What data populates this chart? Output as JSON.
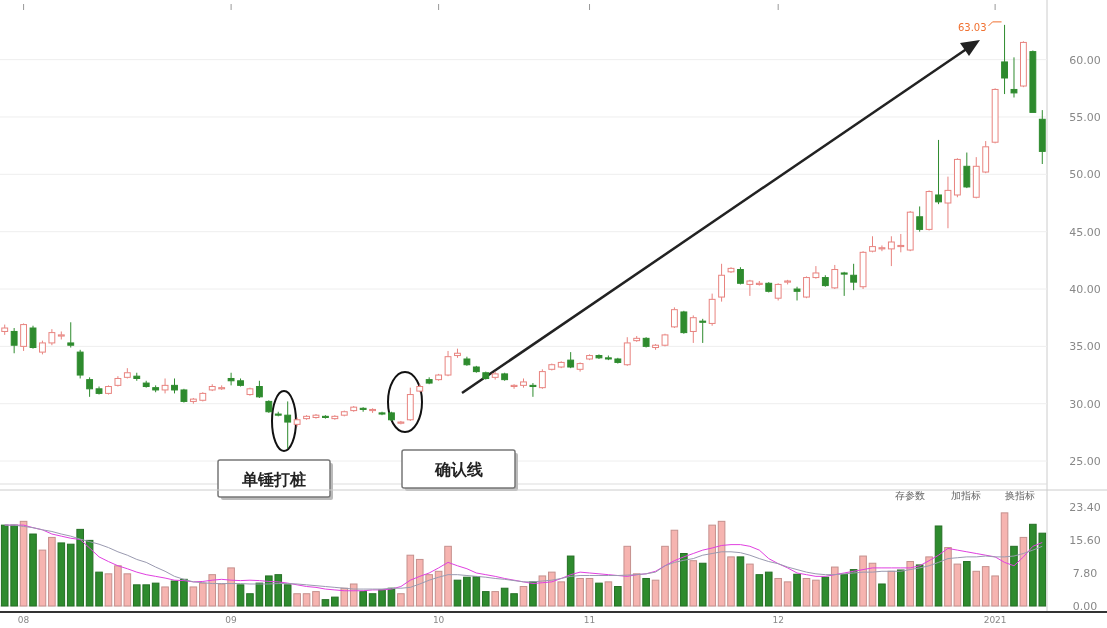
{
  "chart_data": [
    {
      "type": "candlestick",
      "tick_labels": "y",
      "grid": "y",
      "categories": [
        null,
        null,
        "08",
        null,
        null,
        null,
        null,
        null,
        null,
        null,
        null,
        null,
        null,
        null,
        null,
        null,
        null,
        null,
        null,
        null,
        null,
        null,
        null,
        null,
        "09",
        null,
        null,
        null,
        null,
        null,
        null,
        null,
        null,
        null,
        null,
        null,
        null,
        null,
        null,
        null,
        null,
        null,
        null,
        null,
        null,
        null,
        "10",
        null,
        null,
        null,
        null,
        null,
        null,
        null,
        null,
        null,
        null,
        null,
        null,
        null,
        null,
        null,
        "11",
        null,
        null,
        null,
        null,
        null,
        null,
        null,
        null,
        null,
        null,
        null,
        null,
        null,
        null,
        null,
        null,
        null,
        null,
        null,
        "12",
        null,
        null,
        null,
        null,
        null,
        null,
        null,
        null,
        null,
        null,
        null,
        null,
        null,
        null,
        null,
        null,
        null,
        null,
        null,
        null,
        null,
        null,
        "2021",
        null,
        null,
        null,
        null,
        null
      ],
      "ylim": [
        23,
        65.2
      ],
      "yticks": [
        {
          "value": 25,
          "label": "25.00"
        },
        {
          "value": 30,
          "label": "30.00"
        },
        {
          "value": 35,
          "label": "35.00"
        },
        {
          "value": 40,
          "label": "40.00"
        },
        {
          "value": 45,
          "label": "45.00"
        },
        {
          "value": 50,
          "label": "50.00"
        },
        {
          "value": 55,
          "label": "55.00"
        },
        {
          "value": 60,
          "label": "60.00"
        }
      ],
      "ohlc": [
        [
          36.3,
          36.9,
          36.0,
          36.6
        ],
        [
          36.3,
          36.6,
          34.4,
          35.1
        ],
        [
          35.0,
          37.0,
          34.6,
          36.9
        ],
        [
          36.6,
          36.8,
          34.8,
          34.9
        ],
        [
          34.5,
          35.5,
          34.3,
          35.3
        ],
        [
          35.3,
          36.5,
          35.1,
          36.2
        ],
        [
          35.9,
          36.3,
          35.6,
          36.0
        ],
        [
          35.3,
          37.1,
          34.9,
          35.1
        ],
        [
          34.5,
          34.7,
          32.2,
          32.5
        ],
        [
          32.1,
          32.3,
          30.6,
          31.3
        ],
        [
          31.3,
          31.5,
          30.8,
          30.9
        ],
        [
          30.9,
          31.6,
          30.8,
          31.5
        ],
        [
          31.6,
          32.4,
          31.5,
          32.2
        ],
        [
          32.3,
          33.1,
          32.2,
          32.7
        ],
        [
          32.4,
          32.7,
          32.0,
          32.2
        ],
        [
          31.8,
          32.0,
          31.4,
          31.5
        ],
        [
          31.4,
          31.6,
          31.0,
          31.2
        ],
        [
          31.2,
          32.2,
          30.9,
          31.6
        ],
        [
          31.6,
          32.2,
          30.9,
          31.2
        ],
        [
          31.2,
          31.3,
          30.1,
          30.2
        ],
        [
          30.2,
          30.5,
          30.0,
          30.4
        ],
        [
          30.3,
          31.0,
          30.2,
          30.9
        ],
        [
          31.2,
          31.7,
          31.1,
          31.5
        ],
        [
          31.3,
          31.6,
          31.2,
          31.4
        ],
        [
          32.2,
          32.7,
          31.6,
          32.0
        ],
        [
          32.0,
          32.2,
          31.5,
          31.6
        ],
        [
          30.8,
          31.4,
          30.7,
          31.3
        ],
        [
          31.5,
          32.0,
          30.5,
          30.6
        ],
        [
          30.2,
          30.3,
          29.2,
          29.3
        ],
        [
          29.1,
          29.3,
          28.9,
          29.0
        ],
        [
          29.0,
          30.2,
          26.1,
          28.4
        ],
        [
          28.2,
          28.8,
          28.0,
          28.6
        ],
        [
          28.7,
          29.0,
          28.6,
          28.9
        ],
        [
          28.8,
          29.1,
          28.7,
          29.0
        ],
        [
          28.9,
          29.0,
          28.7,
          28.8
        ],
        [
          28.7,
          29.0,
          28.6,
          28.9
        ],
        [
          29.0,
          29.4,
          28.9,
          29.3
        ],
        [
          29.4,
          29.8,
          29.3,
          29.7
        ],
        [
          29.6,
          29.7,
          29.3,
          29.5
        ],
        [
          29.4,
          29.6,
          29.2,
          29.5
        ],
        [
          29.2,
          29.3,
          29.0,
          29.1
        ],
        [
          29.2,
          29.3,
          28.5,
          28.6
        ],
        [
          28.3,
          28.5,
          28.2,
          28.4
        ],
        [
          28.6,
          31.4,
          28.5,
          30.8
        ],
        [
          31.1,
          31.7,
          31.0,
          31.5
        ],
        [
          32.1,
          32.3,
          31.7,
          31.8
        ],
        [
          32.1,
          32.6,
          32.0,
          32.5
        ],
        [
          32.5,
          34.6,
          32.4,
          34.1
        ],
        [
          34.2,
          34.8,
          34.0,
          34.4
        ],
        [
          33.9,
          34.1,
          33.3,
          33.4
        ],
        [
          33.2,
          33.3,
          32.7,
          32.8
        ],
        [
          32.7,
          32.8,
          32.1,
          32.2
        ],
        [
          32.3,
          32.8,
          32.1,
          32.6
        ],
        [
          32.6,
          32.7,
          32.0,
          32.1
        ],
        [
          31.5,
          31.7,
          31.3,
          31.6
        ],
        [
          31.6,
          32.2,
          31.4,
          31.9
        ],
        [
          31.6,
          31.8,
          30.6,
          31.5
        ],
        [
          31.4,
          33.0,
          31.3,
          32.8
        ],
        [
          33.0,
          33.5,
          32.9,
          33.4
        ],
        [
          33.2,
          33.7,
          33.1,
          33.6
        ],
        [
          33.8,
          34.5,
          33.1,
          33.2
        ],
        [
          33.0,
          33.6,
          32.8,
          33.5
        ],
        [
          33.9,
          34.3,
          33.8,
          34.2
        ],
        [
          34.2,
          34.3,
          33.9,
          34.0
        ],
        [
          34.0,
          34.2,
          33.8,
          33.9
        ],
        [
          33.9,
          34.0,
          33.5,
          33.6
        ],
        [
          33.4,
          35.8,
          33.3,
          35.3
        ],
        [
          35.5,
          35.9,
          35.4,
          35.7
        ],
        [
          35.7,
          35.8,
          34.9,
          35.0
        ],
        [
          34.9,
          35.2,
          34.7,
          35.1
        ],
        [
          35.1,
          36.1,
          35.0,
          36.0
        ],
        [
          36.7,
          38.4,
          36.6,
          38.2
        ],
        [
          38.0,
          38.1,
          36.1,
          36.2
        ],
        [
          36.3,
          37.7,
          35.3,
          37.5
        ],
        [
          37.2,
          37.4,
          35.3,
          37.1
        ],
        [
          37.0,
          39.6,
          36.8,
          39.1
        ],
        [
          39.3,
          42.2,
          38.9,
          41.2
        ],
        [
          41.5,
          41.9,
          41.4,
          41.8
        ],
        [
          41.7,
          41.9,
          40.4,
          40.5
        ],
        [
          40.4,
          40.8,
          39.4,
          40.7
        ],
        [
          40.4,
          40.7,
          40.3,
          40.5
        ],
        [
          40.5,
          40.6,
          39.7,
          39.8
        ],
        [
          39.2,
          40.5,
          39.0,
          40.4
        ],
        [
          40.6,
          40.8,
          40.4,
          40.7
        ],
        [
          40.0,
          40.2,
          39.0,
          39.8
        ],
        [
          39.3,
          41.1,
          39.2,
          41.0
        ],
        [
          41.0,
          42.0,
          40.9,
          41.4
        ],
        [
          41.0,
          41.2,
          40.2,
          40.3
        ],
        [
          40.1,
          42.1,
          40.0,
          41.7
        ],
        [
          41.4,
          41.5,
          39.4,
          41.3
        ],
        [
          41.2,
          42.2,
          39.9,
          40.6
        ],
        [
          40.2,
          43.3,
          40.0,
          43.2
        ],
        [
          43.3,
          44.6,
          43.2,
          43.7
        ],
        [
          43.5,
          43.8,
          43.3,
          43.6
        ],
        [
          43.5,
          44.6,
          42.0,
          44.1
        ],
        [
          43.7,
          44.8,
          43.2,
          43.8
        ],
        [
          43.4,
          46.8,
          43.3,
          46.7
        ],
        [
          46.3,
          47.2,
          45.0,
          45.2
        ],
        [
          45.2,
          48.6,
          45.1,
          48.5
        ],
        [
          48.2,
          53.0,
          47.4,
          47.6
        ],
        [
          47.5,
          49.8,
          45.3,
          48.6
        ],
        [
          48.2,
          51.4,
          48.0,
          51.3
        ],
        [
          50.7,
          51.9,
          48.8,
          48.9
        ],
        [
          48.0,
          51.5,
          47.9,
          50.7
        ],
        [
          50.2,
          52.9,
          50.1,
          52.4
        ],
        [
          52.8,
          57.5,
          52.7,
          57.4
        ],
        [
          59.8,
          63.03,
          57.0,
          58.4
        ],
        [
          57.4,
          60.2,
          56.7,
          57.1
        ],
        [
          57.7,
          61.6,
          57.6,
          61.5
        ],
        [
          60.7,
          60.8,
          55.4,
          55.4
        ],
        [
          54.8,
          55.6,
          50.9,
          52.0
        ]
      ],
      "annotations": [
        "63.03",
        "单锤打桩",
        "确认线"
      ]
    },
    {
      "type": "bar",
      "categories": [
        null,
        null,
        "08",
        null,
        null,
        null,
        null,
        null,
        null,
        null,
        null,
        null,
        null,
        null,
        null,
        null,
        null,
        null,
        null,
        null,
        null,
        null,
        null,
        null,
        "09",
        null,
        null,
        null,
        null,
        null,
        null,
        null,
        null,
        null,
        null,
        null,
        null,
        null,
        null,
        null,
        null,
        null,
        null,
        null,
        null,
        null,
        "10",
        null,
        null,
        null,
        null,
        null,
        null,
        null,
        null,
        null,
        null,
        null,
        null,
        null,
        null,
        null,
        "11",
        null,
        null,
        null,
        null,
        null,
        null,
        null,
        null,
        null,
        null,
        null,
        null,
        null,
        null,
        null,
        null,
        null,
        null,
        null,
        "12",
        null,
        null,
        null,
        null,
        null,
        null,
        null,
        null,
        null,
        null,
        null,
        null,
        null,
        null,
        null,
        null,
        null,
        null,
        null,
        null,
        null,
        null,
        "2021",
        null,
        null,
        null,
        null,
        null
      ],
      "ylim": [
        0,
        27.4
      ],
      "yticks": [
        {
          "value": 0,
          "label": "0.00"
        },
        {
          "value": 7.8,
          "label": "7.80"
        },
        {
          "value": 15.6,
          "label": "15.60"
        },
        {
          "value": 23.4,
          "label": "23.40"
        }
      ],
      "series": [
        {
          "values": [
            19.1,
            19.1,
            20.0,
            17.0,
            13.2,
            16.2,
            14.9,
            14.6,
            18.1,
            15.5,
            8.0,
            7.6,
            9.5,
            7.6,
            5.0,
            5.0,
            5.4,
            4.5,
            5.9,
            6.3,
            4.5,
            5.4,
            7.4,
            5.2,
            9.0,
            5.0,
            2.9,
            5.4,
            7.1,
            7.4,
            5.0,
            2.9,
            2.9,
            3.4,
            1.5,
            2.1,
            4.2,
            5.2,
            3.4,
            2.9,
            3.8,
            4.2,
            2.9,
            12.0,
            11.0,
            7.4,
            8.2,
            14.1,
            6.1,
            6.8,
            6.9,
            3.4,
            3.4,
            4.2,
            2.9,
            4.6,
            5.7,
            7.1,
            8.0,
            5.7,
            11.8,
            6.5,
            6.5,
            5.4,
            5.7,
            4.6,
            14.1,
            7.6,
            6.5,
            6.1,
            14.1,
            17.9,
            12.4,
            10.7,
            10.1,
            19.1,
            20.0,
            11.6,
            11.6,
            9.9,
            7.4,
            8.0,
            6.5,
            5.7,
            7.5,
            6.5,
            6.1,
            6.8,
            9.2,
            7.4,
            8.6,
            11.8,
            10.1,
            5.2,
            8.2,
            8.5,
            10.5,
            9.7,
            11.6,
            18.9,
            13.8,
            9.9,
            10.5,
            8.2,
            9.3,
            7.1,
            22.0,
            14.1,
            16.2,
            19.3,
            17.2
          ],
          "colors": [
            "#2e8b2e",
            "#2e8b2e",
            "#f6b4b0",
            "#2e8b2e",
            "#f6b4b0",
            "#f6b4b0",
            "#2e8b2e",
            "#2e8b2e",
            "#2e8b2e",
            "#2e8b2e",
            "#2e8b2e",
            "#f6b4b0",
            "#f6b4b0",
            "#f6b4b0",
            "#2e8b2e",
            "#2e8b2e",
            "#2e8b2e",
            "#f6b4b0",
            "#2e8b2e",
            "#2e8b2e",
            "#f6b4b0",
            "#f6b4b0",
            "#f6b4b0",
            "#f6b4b0",
            "#f6b4b0",
            "#2e8b2e",
            "#2e8b2e",
            "#2e8b2e",
            "#2e8b2e",
            "#2e8b2e",
            "#2e8b2e",
            "#f6b4b0",
            "#f6b4b0",
            "#f6b4b0",
            "#2e8b2e",
            "#2e8b2e",
            "#f6b4b0",
            "#f6b4b0",
            "#2e8b2e",
            "#2e8b2e",
            "#2e8b2e",
            "#2e8b2e",
            "#f6b4b0",
            "#f6b4b0",
            "#f6b4b0",
            "#f6b4b0",
            "#f6b4b0",
            "#f6b4b0",
            "#2e8b2e",
            "#2e8b2e",
            "#2e8b2e",
            "#2e8b2e",
            "#f6b4b0",
            "#2e8b2e",
            "#2e8b2e",
            "#f6b4b0",
            "#2e8b2e",
            "#f6b4b0",
            "#f6b4b0",
            "#f6b4b0",
            "#2e8b2e",
            "#f6b4b0",
            "#f6b4b0",
            "#2e8b2e",
            "#f6b4b0",
            "#2e8b2e",
            "#f6b4b0",
            "#f6b4b0",
            "#2e8b2e",
            "#f6b4b0",
            "#f6b4b0",
            "#f6b4b0",
            "#2e8b2e",
            "#f6b4b0",
            "#2e8b2e",
            "#f6b4b0",
            "#f6b4b0",
            "#f6b4b0",
            "#2e8b2e",
            "#f6b4b0",
            "#2e8b2e",
            "#2e8b2e",
            "#f6b4b0",
            "#f6b4b0",
            "#2e8b2e",
            "#f6b4b0",
            "#f6b4b0",
            "#2e8b2e",
            "#f6b4b0",
            "#2e8b2e",
            "#2e8b2e",
            "#f6b4b0",
            "#f6b4b0",
            "#2e8b2e",
            "#f6b4b0",
            "#2e8b2e",
            "#f6b4b0",
            "#2e8b2e",
            "#f6b4b0",
            "#2e8b2e",
            "#f6b4b0",
            "#f6b4b0",
            "#2e8b2e",
            "#f6b4b0",
            "#f6b4b0",
            "#f6b4b0",
            "#f6b4b0",
            "#2e8b2e",
            "#f6b4b0",
            "#2e8b2e",
            "#2e8b2e"
          ]
        },
        {
          "type": "line",
          "color": "#e040e0",
          "values": [
            19.1,
            19.1,
            19.1,
            18.5,
            18.0,
            17.0,
            16.5,
            16.0,
            15.7,
            13.7,
            11.6,
            10.5,
            9.5,
            8.8,
            8.0,
            7.4,
            7.0,
            6.6,
            6.1,
            6.0,
            5.7,
            5.8,
            6.1,
            6.3,
            6.1,
            6.0,
            6.1,
            6.0,
            5.8,
            5.7,
            5.4,
            5.0,
            4.6,
            4.4,
            4.0,
            3.8,
            3.6,
            3.6,
            3.6,
            3.8,
            3.8,
            4.0,
            4.6,
            6.1,
            7.0,
            7.8,
            9.0,
            10.3,
            9.5,
            8.8,
            7.8,
            7.4,
            7.0,
            6.5,
            6.1,
            5.7,
            5.3,
            5.5,
            5.7,
            6.5,
            7.4,
            8.0,
            7.8,
            7.6,
            7.4,
            7.2,
            7.0,
            7.4,
            7.6,
            8.2,
            9.5,
            10.7,
            11.6,
            12.4,
            13.2,
            13.7,
            14.3,
            14.5,
            14.5,
            14.1,
            13.2,
            11.2,
            10.0,
            9.0,
            7.8,
            7.4,
            7.0,
            7.0,
            7.4,
            7.8,
            8.2,
            8.6,
            9.0,
            9.0,
            9.0,
            9.0,
            9.0,
            9.5,
            10.7,
            12.0,
            13.6,
            13.2,
            12.8,
            12.4,
            12.0,
            11.6,
            10.3,
            9.5,
            11.6,
            14.1,
            15.0
          ]
        },
        {
          "type": "line",
          "color": "#9a9ab0",
          "values": [
            19.1,
            19.1,
            18.8,
            18.5,
            18.0,
            17.6,
            17.0,
            16.5,
            15.8,
            15.2,
            14.6,
            13.8,
            12.8,
            12.0,
            11.0,
            10.3,
            9.2,
            8.2,
            7.0,
            6.3,
            5.7,
            5.5,
            5.3,
            5.3,
            5.3,
            5.3,
            5.2,
            5.2,
            5.2,
            5.3,
            5.3,
            5.2,
            5.0,
            4.8,
            4.6,
            4.4,
            4.2,
            4.0,
            4.0,
            4.0,
            4.0,
            4.2,
            4.2,
            4.4,
            5.2,
            6.1,
            6.8,
            7.4,
            7.4,
            7.2,
            7.0,
            6.8,
            6.5,
            6.3,
            6.0,
            5.7,
            5.7,
            5.9,
            6.1,
            6.5,
            7.0,
            7.2,
            7.2,
            7.2,
            7.2,
            7.2,
            7.3,
            7.4,
            7.6,
            8.0,
            9.5,
            10.3,
            10.8,
            11.2,
            12.0,
            12.4,
            12.8,
            12.8,
            12.6,
            12.0,
            11.2,
            10.5,
            10.0,
            9.2,
            8.6,
            8.0,
            7.6,
            7.4,
            7.4,
            7.6,
            7.8,
            8.0,
            8.0,
            8.2,
            8.2,
            8.2,
            8.6,
            9.0,
            9.5,
            10.3,
            11.2,
            11.4,
            11.6,
            11.6,
            11.8,
            11.6,
            11.6,
            11.8,
            12.4,
            13.2,
            14.1
          ]
        }
      ],
      "annotations": [
        "存参数",
        "加指标",
        "换指标"
      ]
    }
  ]
}
